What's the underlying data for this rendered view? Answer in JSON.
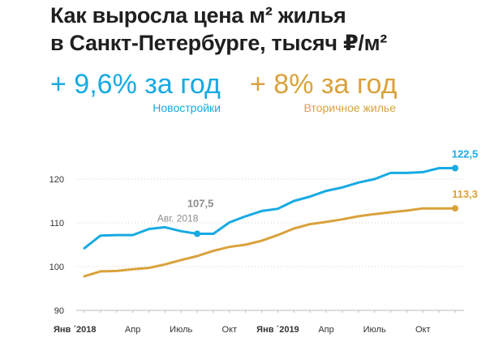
{
  "title": {
    "line1": "Как выросла цена м² жилья",
    "line2": "в Санкт-Петербурге, тысяч ₽/м²"
  },
  "stats": {
    "new_buildings": {
      "value": "+ 9,6% за год",
      "label": "Новостройки"
    },
    "secondary": {
      "value": "+ 8% за год",
      "label": "Вторичное жилье"
    }
  },
  "colors": {
    "new_buildings": "#17aae3",
    "secondary": "#d9a23c",
    "grid": "#cfcfcf",
    "annotation": "#8c8c8c"
  },
  "chart_data": {
    "type": "line",
    "title": "Как выросла цена м² жилья в Санкт-Петербурге, тысяч ₽/м²",
    "ylim": [
      90,
      125
    ],
    "yticks": [
      90,
      100,
      110,
      120
    ],
    "grid": true,
    "x": [
      "Янв ´2018",
      "Фев 2018",
      "Мар 2018",
      "Апр 2018",
      "Май 2018",
      "Июн 2018",
      "Июль 2018",
      "Авг 2018",
      "Сен 2018",
      "Окт 2018",
      "Ноя 2018",
      "Дек 2018",
      "Янв ´2019",
      "Фев 2019",
      "Мар 2019",
      "Апр 2019",
      "Май 2019",
      "Июн 2019",
      "Июль 2019",
      "Авг 2019",
      "Сен 2019",
      "Окт 2019",
      "Ноя 2019",
      "Дек 2019"
    ],
    "xtick_labels": [
      {
        "index": 0,
        "label": "Янв ´2018",
        "bold": true
      },
      {
        "index": 3,
        "label": "Апр",
        "bold": false
      },
      {
        "index": 6,
        "label": "Июль",
        "bold": false
      },
      {
        "index": 9,
        "label": "Окт",
        "bold": false
      },
      {
        "index": 12,
        "label": "Янв ´2019",
        "bold": true
      },
      {
        "index": 15,
        "label": "Апр",
        "bold": false
      },
      {
        "index": 18,
        "label": "Июль",
        "bold": false
      },
      {
        "index": 21,
        "label": "Окт",
        "bold": false
      }
    ],
    "series": [
      {
        "key": "new_buildings",
        "values": [
          104.2,
          107.1,
          107.2,
          107.2,
          108.6,
          109.0,
          108.1,
          107.5,
          107.5,
          110.1,
          111.5,
          112.7,
          113.2,
          115.0,
          116.0,
          117.3,
          118.1,
          119.2,
          120.0,
          121.4,
          121.4,
          121.6,
          122.5,
          122.5
        ]
      },
      {
        "key": "secondary",
        "values": [
          97.8,
          98.9,
          99.0,
          99.4,
          99.7,
          100.5,
          101.5,
          102.4,
          103.6,
          104.5,
          105.0,
          105.9,
          107.2,
          108.7,
          109.7,
          110.2,
          110.8,
          111.5,
          112.0,
          112.4,
          112.8,
          113.3,
          113.3,
          113.3
        ]
      }
    ],
    "annotations": [
      {
        "series": "new_buildings",
        "index": 23,
        "value": "122,5",
        "label": ""
      },
      {
        "series": "secondary",
        "index": 23,
        "value": "113,3",
        "label": ""
      },
      {
        "series": "new_buildings",
        "index": 7,
        "value": "107,5",
        "label": "Авг. 2018"
      }
    ]
  }
}
